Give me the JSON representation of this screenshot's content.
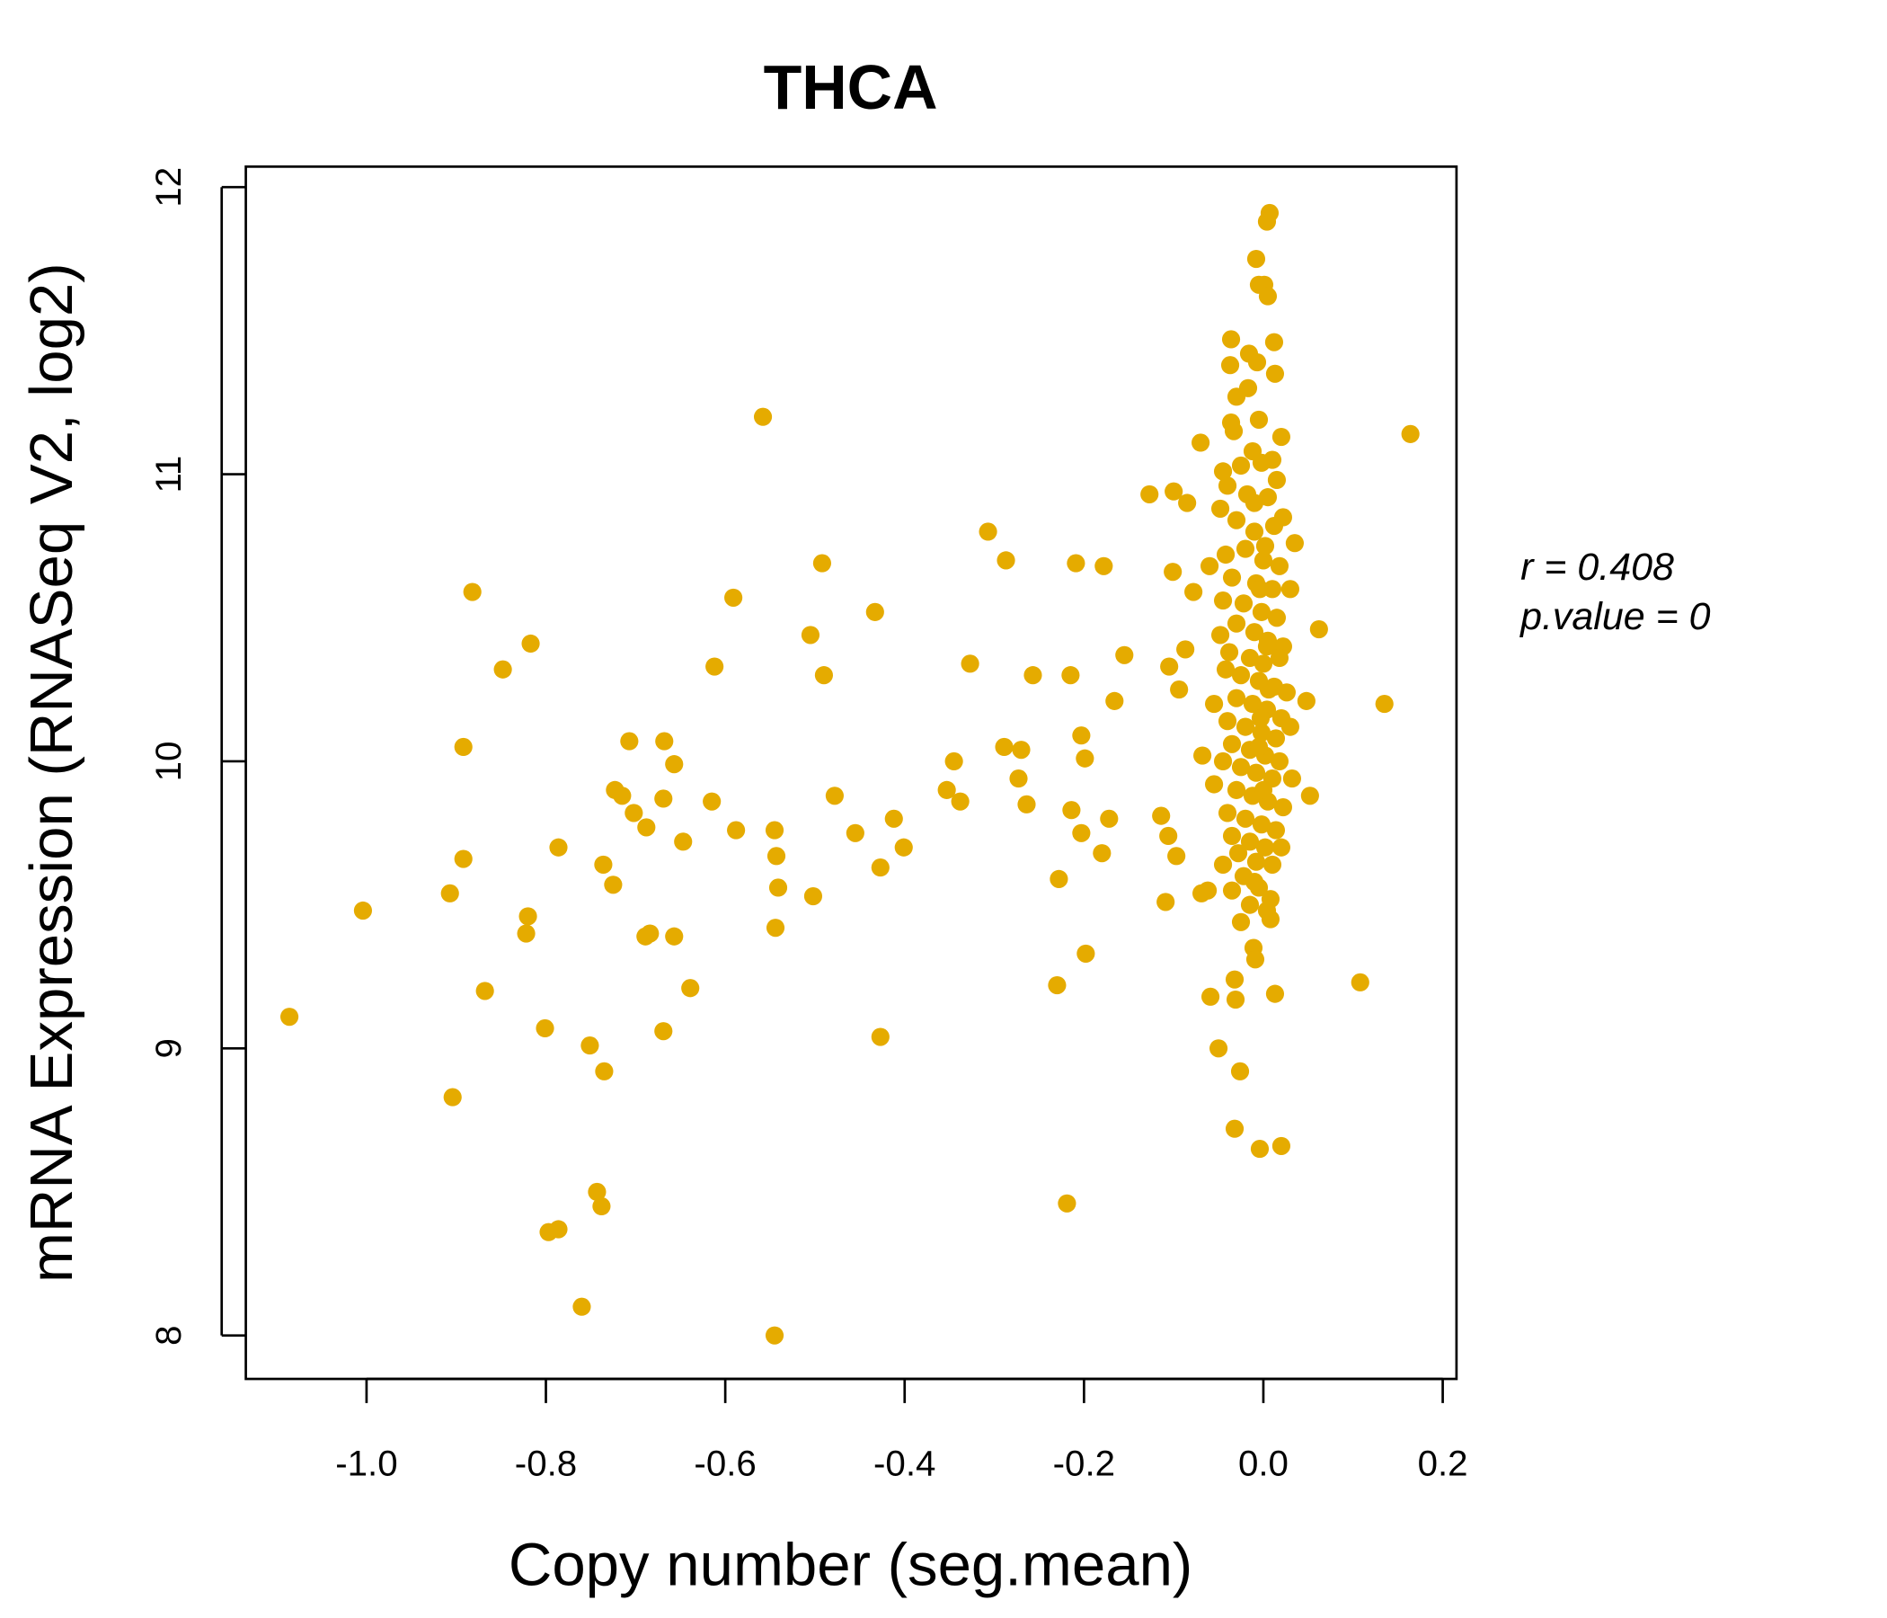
{
  "chart_data": {
    "type": "scatter",
    "title": "THCA",
    "xlabel": "Copy number (seg.mean)",
    "ylabel": "mRNA Expression (RNASeq V2, log2)",
    "xlim": [
      -1.135,
      0.215
    ],
    "ylim": [
      7.93,
      12.07
    ],
    "xticks": [
      -1.0,
      -0.8,
      -0.6,
      -0.4,
      -0.2,
      0.0,
      0.2
    ],
    "xtick_labels": [
      "-1.0",
      "-0.8",
      "-0.6",
      "-0.4",
      "-0.2",
      "0.0",
      "0.2"
    ],
    "yticks": [
      8,
      9,
      10,
      11,
      12
    ],
    "ytick_labels": [
      "8",
      "9",
      "10",
      "11",
      "12"
    ],
    "grid": false,
    "color": "#E5AB00",
    "annotations": {
      "r": "r = 0.408",
      "p": "p.value = 0"
    },
    "points": [
      [
        -1.086,
        9.11
      ],
      [
        -1.004,
        9.48
      ],
      [
        -0.882,
        10.59
      ],
      [
        -0.817,
        10.41
      ],
      [
        -0.848,
        10.32
      ],
      [
        -0.892,
        10.05
      ],
      [
        -0.892,
        9.66
      ],
      [
        -0.907,
        9.54
      ],
      [
        -0.904,
        8.83
      ],
      [
        -0.868,
        9.2
      ],
      [
        -0.82,
        9.46
      ],
      [
        -0.822,
        9.4
      ],
      [
        -0.786,
        9.7
      ],
      [
        -0.801,
        9.07
      ],
      [
        -0.797,
        8.36
      ],
      [
        -0.786,
        8.37
      ],
      [
        -0.76,
        8.1
      ],
      [
        -0.743,
        8.5
      ],
      [
        -0.738,
        8.45
      ],
      [
        -0.751,
        9.01
      ],
      [
        -0.735,
        8.92
      ],
      [
        -0.736,
        9.64
      ],
      [
        -0.725,
        9.57
      ],
      [
        -0.723,
        9.9
      ],
      [
        -0.715,
        9.88
      ],
      [
        -0.707,
        10.07
      ],
      [
        -0.702,
        9.82
      ],
      [
        -0.688,
        9.77
      ],
      [
        -0.689,
        9.39
      ],
      [
        -0.684,
        9.4
      ],
      [
        -0.668,
        10.07
      ],
      [
        -0.657,
        9.99
      ],
      [
        -0.669,
        9.87
      ],
      [
        -0.657,
        9.39
      ],
      [
        -0.647,
        9.72
      ],
      [
        -0.639,
        9.21
      ],
      [
        -0.669,
        9.06
      ],
      [
        -0.612,
        10.33
      ],
      [
        -0.615,
        9.86
      ],
      [
        -0.591,
        10.57
      ],
      [
        -0.588,
        9.76
      ],
      [
        -0.558,
        11.2
      ],
      [
        -0.545,
        9.76
      ],
      [
        -0.543,
        9.67
      ],
      [
        -0.541,
        9.56
      ],
      [
        -0.544,
        9.42
      ],
      [
        -0.545,
        8.0
      ],
      [
        -0.505,
        10.44
      ],
      [
        -0.492,
        10.69
      ],
      [
        -0.49,
        10.3
      ],
      [
        -0.502,
        9.53
      ],
      [
        -0.478,
        9.88
      ],
      [
        -0.455,
        9.75
      ],
      [
        -0.433,
        10.52
      ],
      [
        -0.427,
        9.63
      ],
      [
        -0.412,
        9.8
      ],
      [
        -0.401,
        9.7
      ],
      [
        -0.427,
        9.04
      ],
      [
        -0.353,
        9.9
      ],
      [
        -0.345,
        10.0
      ],
      [
        -0.338,
        9.86
      ],
      [
        -0.327,
        10.34
      ],
      [
        -0.307,
        10.8
      ],
      [
        -0.287,
        10.7
      ],
      [
        -0.289,
        10.05
      ],
      [
        -0.27,
        10.04
      ],
      [
        -0.273,
        9.94
      ],
      [
        -0.264,
        9.85
      ],
      [
        -0.257,
        10.3
      ],
      [
        -0.23,
        9.22
      ],
      [
        -0.228,
        9.59
      ],
      [
        -0.219,
        8.46
      ],
      [
        -0.215,
        10.3
      ],
      [
        -0.214,
        9.83
      ],
      [
        -0.209,
        10.69
      ],
      [
        -0.203,
        10.09
      ],
      [
        -0.199,
        10.01
      ],
      [
        -0.203,
        9.75
      ],
      [
        -0.198,
        9.33
      ],
      [
        -0.18,
        9.68
      ],
      [
        -0.178,
        10.68
      ],
      [
        -0.172,
        9.8
      ],
      [
        -0.166,
        10.21
      ],
      [
        -0.155,
        10.37
      ],
      [
        -0.127,
        10.93
      ],
      [
        -0.114,
        9.81
      ],
      [
        -0.109,
        9.51
      ],
      [
        -0.106,
        9.74
      ],
      [
        -0.105,
        10.33
      ],
      [
        -0.101,
        10.66
      ],
      [
        -0.1,
        10.94
      ],
      [
        -0.097,
        9.67
      ],
      [
        -0.094,
        10.25
      ],
      [
        -0.087,
        10.39
      ],
      [
        -0.085,
        10.9
      ],
      [
        -0.078,
        10.59
      ],
      [
        -0.07,
        11.11
      ],
      [
        -0.069,
        9.54
      ],
      [
        -0.062,
        9.55
      ],
      [
        -0.059,
        9.18
      ],
      [
        -0.05,
        9.0
      ],
      [
        -0.032,
        8.72
      ],
      [
        -0.026,
        8.92
      ],
      [
        -0.004,
        8.65
      ],
      [
        0.02,
        8.66
      ],
      [
        0.013,
        9.19
      ],
      [
        -0.032,
        9.24
      ],
      [
        -0.031,
        9.17
      ],
      [
        -0.011,
        9.35
      ],
      [
        -0.009,
        9.31
      ],
      [
        0.108,
        9.23
      ],
      [
        0.135,
        10.2
      ],
      [
        0.164,
        11.14
      ],
      [
        0.062,
        10.46
      ],
      [
        0.052,
        9.88
      ],
      [
        0.048,
        10.21
      ],
      [
        0.007,
        11.91
      ],
      [
        0.004,
        11.88
      ],
      [
        -0.008,
        11.75
      ],
      [
        -0.005,
        11.66
      ],
      [
        0.001,
        11.66
      ],
      [
        0.005,
        11.62
      ],
      [
        -0.036,
        11.47
      ],
      [
        0.012,
        11.46
      ],
      [
        -0.016,
        11.42
      ],
      [
        -0.037,
        11.38
      ],
      [
        -0.007,
        11.39
      ],
      [
        0.013,
        11.35
      ],
      [
        -0.017,
        11.3
      ],
      [
        -0.03,
        11.27
      ],
      [
        -0.005,
        11.19
      ],
      [
        -0.036,
        11.18
      ],
      [
        0.02,
        11.13
      ],
      [
        -0.033,
        11.15
      ],
      [
        -0.012,
        11.08
      ],
      [
        0.01,
        11.05
      ],
      [
        -0.045,
        11.01
      ],
      [
        -0.025,
        11.03
      ],
      [
        -0.002,
        11.04
      ],
      [
        0.015,
        10.98
      ],
      [
        -0.04,
        10.96
      ],
      [
        -0.018,
        10.93
      ],
      [
        0.005,
        10.92
      ],
      [
        0.022,
        10.85
      ],
      [
        -0.048,
        10.88
      ],
      [
        -0.03,
        10.84
      ],
      [
        -0.01,
        10.8
      ],
      [
        0.012,
        10.82
      ],
      [
        0.035,
        10.76
      ],
      [
        -0.042,
        10.72
      ],
      [
        -0.02,
        10.74
      ],
      [
        0.0,
        10.7
      ],
      [
        0.018,
        10.68
      ],
      [
        -0.06,
        10.68
      ],
      [
        -0.035,
        10.64
      ],
      [
        -0.008,
        10.62
      ],
      [
        0.01,
        10.6
      ],
      [
        0.03,
        10.6
      ],
      [
        -0.045,
        10.56
      ],
      [
        -0.022,
        10.55
      ],
      [
        -0.002,
        10.52
      ],
      [
        0.015,
        10.5
      ],
      [
        -0.03,
        10.48
      ],
      [
        -0.01,
        10.45
      ],
      [
        0.005,
        10.42
      ],
      [
        0.022,
        10.4
      ],
      [
        -0.048,
        10.44
      ],
      [
        -0.038,
        10.38
      ],
      [
        -0.015,
        10.36
      ],
      [
        0.0,
        10.34
      ],
      [
        0.018,
        10.36
      ],
      [
        -0.042,
        10.32
      ],
      [
        -0.025,
        10.3
      ],
      [
        -0.005,
        10.28
      ],
      [
        0.012,
        10.26
      ],
      [
        0.026,
        10.24
      ],
      [
        -0.055,
        10.2
      ],
      [
        -0.03,
        10.22
      ],
      [
        -0.012,
        10.2
      ],
      [
        0.004,
        10.18
      ],
      [
        0.02,
        10.15
      ],
      [
        -0.04,
        10.14
      ],
      [
        -0.02,
        10.12
      ],
      [
        -0.002,
        10.1
      ],
      [
        0.014,
        10.08
      ],
      [
        0.03,
        10.12
      ],
      [
        -0.035,
        10.06
      ],
      [
        -0.015,
        10.04
      ],
      [
        0.002,
        10.02
      ],
      [
        0.018,
        10.0
      ],
      [
        -0.068,
        10.02
      ],
      [
        -0.045,
        10.0
      ],
      [
        -0.025,
        9.98
      ],
      [
        -0.008,
        9.96
      ],
      [
        0.01,
        9.94
      ],
      [
        0.032,
        9.94
      ],
      [
        -0.055,
        9.92
      ],
      [
        -0.03,
        9.9
      ],
      [
        -0.012,
        9.88
      ],
      [
        0.005,
        9.86
      ],
      [
        0.022,
        9.84
      ],
      [
        -0.04,
        9.82
      ],
      [
        -0.02,
        9.8
      ],
      [
        -0.002,
        9.78
      ],
      [
        0.014,
        9.76
      ],
      [
        -0.035,
        9.74
      ],
      [
        -0.015,
        9.72
      ],
      [
        0.002,
        9.7
      ],
      [
        0.02,
        9.7
      ],
      [
        -0.028,
        9.68
      ],
      [
        -0.008,
        9.65
      ],
      [
        0.01,
        9.64
      ],
      [
        -0.045,
        9.64
      ],
      [
        -0.022,
        9.6
      ],
      [
        -0.005,
        9.56
      ],
      [
        0.008,
        9.52
      ],
      [
        -0.035,
        9.55
      ],
      [
        -0.015,
        9.5
      ],
      [
        0.004,
        9.48
      ],
      [
        -0.025,
        9.44
      ],
      [
        0.008,
        9.45
      ],
      [
        -0.01,
        9.58
      ],
      [
        0.0,
        9.9
      ],
      [
        -0.005,
        10.05
      ],
      [
        0.004,
        10.4
      ],
      [
        -0.004,
        10.6
      ],
      [
        0.002,
        10.75
      ],
      [
        -0.01,
        10.9
      ],
      [
        0.006,
        10.25
      ],
      [
        -0.003,
        10.15
      ]
    ]
  }
}
